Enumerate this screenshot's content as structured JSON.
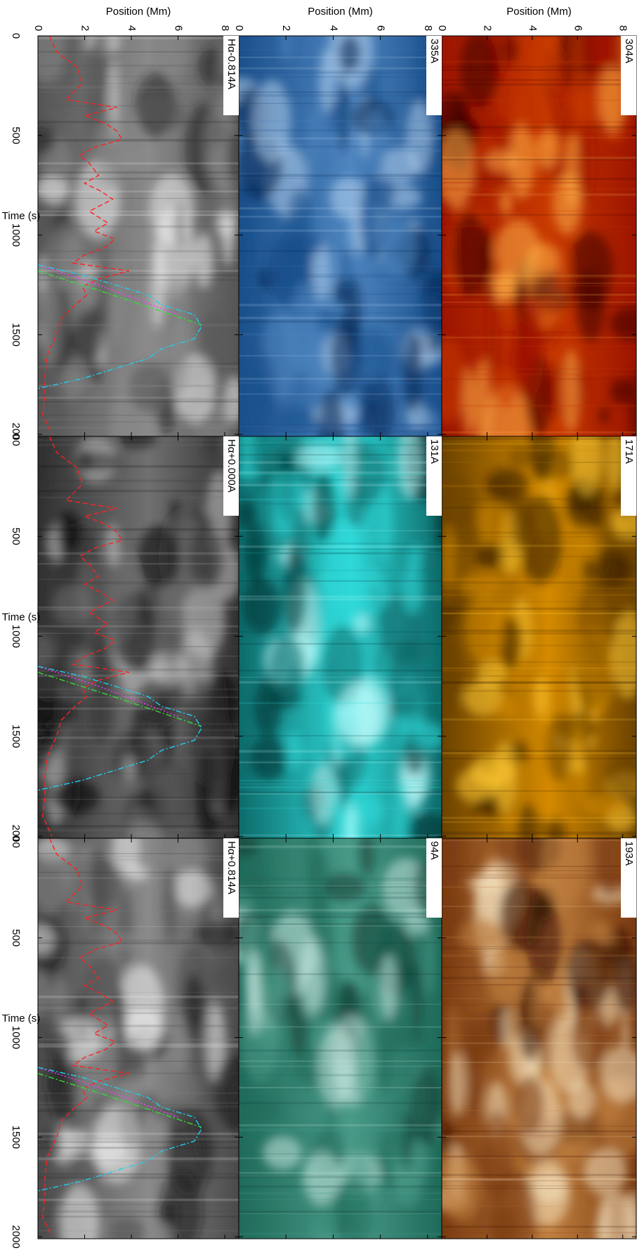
{
  "chart_data": [
    {
      "type": "image",
      "label": "304A",
      "cmap": [
        "#3a0000",
        "#9c1400",
        "#c83a00",
        "#ffb347"
      ],
      "ylabel": "Position (Mm)",
      "xlim": [
        0,
        2010
      ],
      "ylim": [
        0,
        8.6
      ],
      "xticks": [
        0,
        500,
        1000,
        1500,
        2000
      ],
      "yticks": [
        0,
        2,
        4,
        6,
        8
      ]
    },
    {
      "type": "image",
      "label": "171A",
      "cmap": [
        "#2a1600",
        "#6b4200",
        "#d48a00",
        "#ffcc33"
      ],
      "xlim": [
        0,
        2010
      ],
      "ylim": [
        0,
        8.6
      ],
      "xticks": [
        0,
        500,
        1000,
        1500,
        2000
      ],
      "yticks": [
        0,
        2,
        4,
        6,
        8
      ]
    },
    {
      "type": "image",
      "label": "193A",
      "cmap": [
        "#2a0a00",
        "#7a3a10",
        "#c08040",
        "#f4e2c0"
      ],
      "xlim": [
        0,
        2010
      ],
      "ylim": [
        0,
        8.6
      ],
      "xticks": [
        0,
        500,
        1000,
        1500,
        2000
      ],
      "yticks": [
        0,
        2,
        4,
        6,
        8
      ]
    },
    {
      "type": "image",
      "label": "335A",
      "cmap": [
        "#06214a",
        "#1a4f8a",
        "#4f86c0",
        "#b8d4ee"
      ],
      "ylabel": "Position (Mm)",
      "xlim": [
        0,
        2010
      ],
      "ylim": [
        0,
        8.6
      ],
      "xticks": [
        0,
        500,
        1000,
        1500,
        2000
      ],
      "yticks": [
        0,
        2,
        4,
        6,
        8
      ]
    },
    {
      "type": "image",
      "label": "131A",
      "cmap": [
        "#002a2a",
        "#0d6a6a",
        "#30d8d8",
        "#c8ffff"
      ],
      "xlim": [
        0,
        2010
      ],
      "ylim": [
        0,
        8.6
      ],
      "xticks": [
        0,
        500,
        1000,
        1500,
        2000
      ],
      "yticks": [
        0,
        2,
        4,
        6,
        8
      ]
    },
    {
      "type": "image",
      "label": "94A",
      "cmap": [
        "#0c3a30",
        "#1f6a5a",
        "#4a9a88",
        "#c8e8e0"
      ],
      "xlim": [
        0,
        2010
      ],
      "ylim": [
        0,
        8.6
      ],
      "xticks": [
        0,
        500,
        1000,
        1500,
        2000
      ],
      "yticks": [
        0,
        2,
        4,
        6,
        8
      ]
    },
    {
      "type": "image",
      "label": "Hα-0.814A",
      "cmap": [
        "#202020",
        "#555555",
        "#8a8a8a",
        "#f0f0f0"
      ],
      "ylabel": "Position (Mm)",
      "xlabel": "Time (s)",
      "xlim": [
        0,
        2010
      ],
      "ylim": [
        0,
        8.6
      ],
      "xticks": [
        0,
        500,
        1000,
        1500,
        2000
      ],
      "yticks": [
        0,
        2,
        4,
        6,
        8
      ],
      "series": [
        {
          "color": "#ff2020",
          "style": "dashed",
          "x": [
            0,
            80,
            160,
            240,
            320,
            360,
            400,
            440,
            480,
            520,
            560,
            600,
            640,
            700,
            740,
            780,
            820,
            880,
            940,
            980,
            1020,
            1060,
            1100,
            1140,
            1180,
            1220,
            1260,
            1300,
            1360,
            1420,
            1500,
            1600,
            1700,
            1800,
            1900,
            2000
          ],
          "values": [
            0.5,
            0.8,
            1.7,
            1.9,
            1.2,
            3.4,
            2.0,
            2.9,
            3.4,
            3.6,
            2.4,
            1.8,
            2.2,
            2.6,
            2.0,
            2.7,
            3.2,
            2.2,
            3.0,
            2.4,
            3.3,
            2.9,
            2.0,
            1.5,
            3.9,
            2.6,
            1.9,
            2.1,
            1.5,
            1.0,
            0.8,
            0.4,
            0.3,
            0.3,
            0.2,
            0.6
          ]
        },
        {
          "color": "#ff33ff",
          "style": "dotted",
          "x": [
            1150,
            1250,
            1400
          ],
          "values": [
            0,
            2.6,
            6.0
          ]
        },
        {
          "color": "#33dd33",
          "style": "dashdot",
          "x": [
            1180,
            1300,
            1450
          ],
          "values": [
            0,
            3.2,
            7.0
          ]
        },
        {
          "color": "#22ccee",
          "style": "dashdot",
          "x": [
            1150,
            1200,
            1250,
            1300,
            1350,
            1400,
            1460,
            1520,
            1570,
            1620,
            1670,
            1720,
            1770
          ],
          "values": [
            0,
            1.9,
            3.3,
            4.7,
            5.3,
            6.7,
            7.0,
            6.7,
            5.3,
            4.7,
            3.3,
            1.9,
            0
          ]
        }
      ]
    },
    {
      "type": "image",
      "label": "Hα+0.000A",
      "cmap": [
        "#0a0a0a",
        "#303030",
        "#707070",
        "#c8c8c8"
      ],
      "xlabel": "Time (s)",
      "xlim": [
        0,
        2010
      ],
      "ylim": [
        0,
        8.6
      ],
      "xticks": [
        0,
        500,
        1000,
        1500,
        2000
      ],
      "yticks": [
        0,
        2,
        4,
        6,
        8
      ],
      "series": [
        {
          "color": "#ff2020",
          "style": "dashed",
          "x": [
            0,
            80,
            160,
            240,
            320,
            360,
            400,
            440,
            480,
            520,
            560,
            600,
            640,
            700,
            740,
            780,
            820,
            880,
            940,
            980,
            1020,
            1060,
            1100,
            1140,
            1180,
            1220,
            1260,
            1300,
            1360,
            1420,
            1500,
            1600,
            1700,
            1800,
            1900,
            2000
          ],
          "values": [
            0.5,
            0.8,
            1.7,
            1.9,
            1.2,
            3.4,
            2.0,
            2.9,
            3.4,
            3.6,
            2.4,
            1.8,
            2.2,
            2.6,
            2.0,
            2.7,
            3.2,
            2.2,
            3.0,
            2.4,
            3.3,
            2.9,
            2.0,
            1.5,
            3.9,
            2.6,
            1.9,
            2.1,
            1.5,
            1.0,
            0.8,
            0.4,
            0.3,
            0.3,
            0.2,
            0.6
          ]
        },
        {
          "color": "#ff33ff",
          "style": "dotted",
          "x": [
            1150,
            1250,
            1400
          ],
          "values": [
            0,
            2.6,
            6.0
          ]
        },
        {
          "color": "#33dd33",
          "style": "dashdot",
          "x": [
            1180,
            1300,
            1450
          ],
          "values": [
            0,
            3.2,
            7.0
          ]
        },
        {
          "color": "#22ccee",
          "style": "dashdot",
          "x": [
            1150,
            1200,
            1250,
            1300,
            1350,
            1400,
            1460,
            1520,
            1570,
            1620,
            1670,
            1720,
            1770
          ],
          "values": [
            0,
            1.9,
            3.3,
            4.7,
            5.3,
            6.7,
            7.0,
            6.7,
            5.3,
            4.7,
            3.3,
            1.9,
            0
          ]
        }
      ]
    },
    {
      "type": "image",
      "label": "Hα+0.814A",
      "cmap": [
        "#1a1a1a",
        "#4a4a4a",
        "#8a8a8a",
        "#f2f2f2"
      ],
      "xlabel": "Time (s)",
      "xlim": [
        0,
        2010
      ],
      "ylim": [
        0,
        8.6
      ],
      "xticks": [
        0,
        500,
        1000,
        1500,
        2000
      ],
      "yticks": [
        0,
        2,
        4,
        6,
        8
      ],
      "series": [
        {
          "color": "#ff2020",
          "style": "dashed",
          "x": [
            0,
            80,
            160,
            240,
            320,
            360,
            400,
            440,
            480,
            520,
            560,
            600,
            640,
            700,
            740,
            780,
            820,
            880,
            940,
            980,
            1020,
            1060,
            1100,
            1140,
            1180,
            1220,
            1260,
            1300,
            1360,
            1420,
            1500,
            1600,
            1700,
            1800,
            1900,
            2000
          ],
          "values": [
            0.5,
            0.8,
            1.7,
            1.9,
            1.2,
            3.4,
            2.0,
            2.9,
            3.4,
            3.6,
            2.4,
            1.8,
            2.2,
            2.6,
            2.0,
            2.7,
            3.2,
            2.2,
            3.0,
            2.4,
            3.3,
            2.9,
            2.0,
            1.5,
            3.9,
            2.6,
            1.9,
            2.1,
            1.5,
            1.0,
            0.8,
            0.4,
            0.3,
            0.3,
            0.2,
            0.6
          ]
        },
        {
          "color": "#ff33ff",
          "style": "dotted",
          "x": [
            1150,
            1250,
            1400
          ],
          "values": [
            0,
            2.6,
            6.0
          ]
        },
        {
          "color": "#33dd33",
          "style": "dashdot",
          "x": [
            1180,
            1300,
            1450
          ],
          "values": [
            0,
            3.2,
            7.0
          ]
        },
        {
          "color": "#22ccee",
          "style": "dashdot",
          "x": [
            1150,
            1200,
            1250,
            1300,
            1350,
            1400,
            1460,
            1520,
            1570,
            1620,
            1670,
            1720,
            1770
          ],
          "values": [
            0,
            1.9,
            3.3,
            4.7,
            5.3,
            6.7,
            7.0,
            6.7,
            5.3,
            4.7,
            3.3,
            1.9,
            0
          ]
        }
      ]
    }
  ]
}
